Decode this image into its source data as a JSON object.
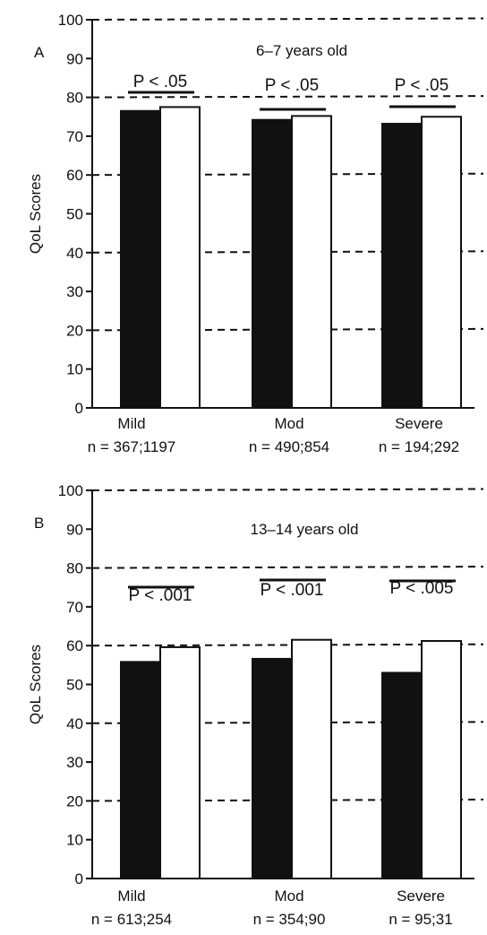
{
  "chart_data": [
    {
      "type": "bar",
      "panel": "A",
      "subtitle": "6–7 years old",
      "ylabel": "QoL Scores",
      "ylim": [
        0,
        100
      ],
      "yticks": [
        0,
        10,
        20,
        30,
        40,
        50,
        60,
        70,
        80,
        90,
        100
      ],
      "dashed_gridlines": [
        20,
        40,
        60,
        80,
        100
      ],
      "categories": [
        "Mild",
        "Mod",
        "Severe"
      ],
      "n_labels": [
        "n = 367;1197",
        "n = 490;854",
        "n = 194;292"
      ],
      "p_values": [
        "P < .05",
        "P < .05",
        "P < .05"
      ],
      "series": [
        {
          "fill": "#111111",
          "values": [
            76.5,
            74.2,
            73.2
          ]
        },
        {
          "fill": "#ffffff",
          "values": [
            77.5,
            75.2,
            75.0
          ]
        }
      ]
    },
    {
      "type": "bar",
      "panel": "B",
      "subtitle": "13–14 years old",
      "ylabel": "QoL Scores",
      "ylim": [
        0,
        100
      ],
      "yticks": [
        0,
        10,
        20,
        30,
        40,
        50,
        60,
        70,
        80,
        90,
        100
      ],
      "dashed_gridlines": [
        20,
        40,
        60,
        80,
        100
      ],
      "categories": [
        "Mild",
        "Mod",
        "Severe"
      ],
      "n_labels": [
        "n = 613;254",
        "n = 354;90",
        "n = 95;31"
      ],
      "p_values": [
        "P < .001",
        "P < .001",
        "P < .005"
      ],
      "series": [
        {
          "fill": "#111111",
          "values": [
            55.8,
            56.6,
            53.0
          ]
        },
        {
          "fill": "#ffffff",
          "values": [
            59.6,
            61.5,
            61.2
          ]
        }
      ]
    }
  ]
}
